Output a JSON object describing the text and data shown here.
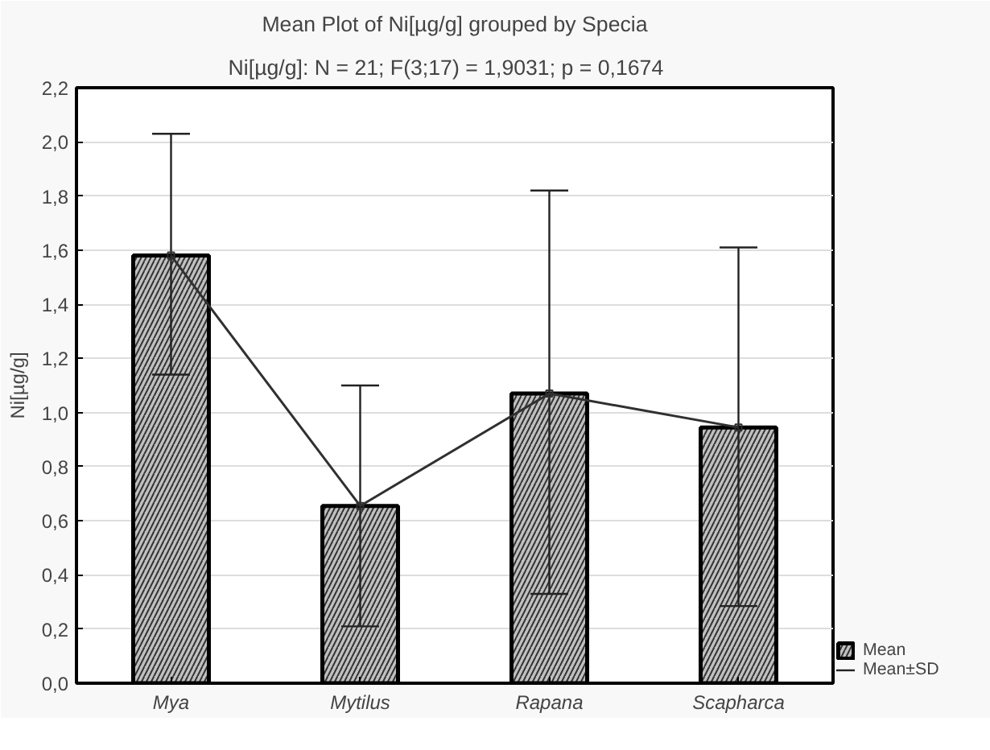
{
  "chart_data": {
    "type": "bar",
    "title": "Mean Plot of Ni[µg/g] grouped by Specia",
    "subtitle": "Ni[µg/g]:   N = 21;  F(3;17) = 1,9031; p = 0,1674",
    "ylabel": "Ni[µg/g]",
    "categories": [
      "Mya",
      "Mytilus",
      "Rapana",
      "Scapharca"
    ],
    "series": [
      {
        "name": "Mean",
        "color": "#c0c0c0",
        "values": [
          1.58,
          0.655,
          1.07,
          0.945
        ],
        "errors": [
          [
            1.14,
            2.03
          ],
          [
            0.21,
            1.1
          ],
          [
            0.33,
            1.82
          ],
          [
            0.285,
            1.61
          ]
        ]
      },
      {
        "type": "line",
        "color": "#303030",
        "marker": "square",
        "values": [
          1.58,
          0.655,
          1.07,
          0.945
        ]
      }
    ],
    "annotations": [
      "Mean±SD"
    ],
    "ylim": [
      0,
      2.2
    ],
    "yticks": [
      {
        "value": 0,
        "label": "0,0"
      },
      {
        "value": 0.2,
        "label": "0,2"
      },
      {
        "value": 0.4,
        "label": "0,4"
      },
      {
        "value": 0.6,
        "label": "0,6"
      },
      {
        "value": 0.8,
        "label": "0,8"
      },
      {
        "value": 1.0,
        "label": "1,0"
      },
      {
        "value": 1.2,
        "label": "1,2"
      },
      {
        "value": 1.4,
        "label": "1,4"
      },
      {
        "value": 1.6,
        "label": "1,6"
      },
      {
        "value": 1.8,
        "label": "1,8"
      },
      {
        "value": 2.0,
        "label": "2,0"
      },
      {
        "value": 2.2,
        "label": "2,2"
      }
    ],
    "grid": "y",
    "legend": "bottom right"
  }
}
